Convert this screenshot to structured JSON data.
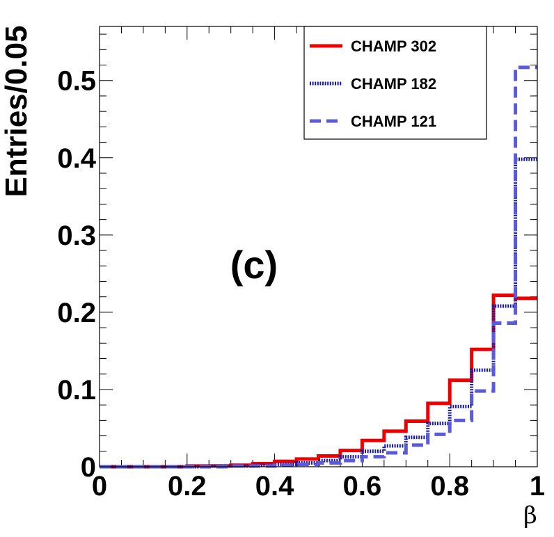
{
  "chart_data": {
    "type": "histogram",
    "panel_label": "(c)",
    "xlabel": "β",
    "ylabel": "Entries/0.05",
    "xlim": [
      0,
      1
    ],
    "ylim": [
      0,
      0.57
    ],
    "bin_width": 0.05,
    "x_ticks": [
      0,
      0.2,
      0.4,
      0.6,
      0.8,
      1
    ],
    "x_tick_labels": [
      "0",
      "0.2",
      "0.4",
      "0.6",
      "0.8",
      "1"
    ],
    "y_ticks": [
      0,
      0.1,
      0.2,
      0.3,
      0.4,
      0.5
    ],
    "y_tick_labels": [
      "0",
      "0.1",
      "0.2",
      "0.3",
      "0.4",
      "0.5"
    ],
    "legend_position": "top-right",
    "series": [
      {
        "name": "CHAMP 302",
        "color": "#ee0000",
        "style": "solid",
        "bin_edges": [
          0,
          0.05,
          0.1,
          0.15,
          0.2,
          0.25,
          0.3,
          0.35,
          0.4,
          0.45,
          0.5,
          0.55,
          0.6,
          0.65,
          0.7,
          0.75,
          0.8,
          0.85,
          0.9,
          0.95,
          1.0
        ],
        "values": [
          0.0,
          0.0,
          0.0,
          0.0,
          0.001,
          0.001,
          0.002,
          0.004,
          0.007,
          0.01,
          0.014,
          0.021,
          0.034,
          0.046,
          0.059,
          0.082,
          0.112,
          0.152,
          0.222,
          0.218
        ]
      },
      {
        "name": "CHAMP 182",
        "color": "#1a1aaa",
        "style": "dotted",
        "bin_edges": [
          0,
          0.05,
          0.1,
          0.15,
          0.2,
          0.25,
          0.3,
          0.35,
          0.4,
          0.45,
          0.5,
          0.55,
          0.6,
          0.65,
          0.7,
          0.75,
          0.8,
          0.85,
          0.9,
          0.95,
          1.0
        ],
        "values": [
          0.0,
          0.0,
          0.0,
          0.0,
          0.0,
          0.001,
          0.001,
          0.002,
          0.003,
          0.005,
          0.008,
          0.013,
          0.02,
          0.027,
          0.038,
          0.056,
          0.078,
          0.125,
          0.208,
          0.398
        ]
      },
      {
        "name": "CHAMP 121",
        "color": "#5b5bd9",
        "style": "dashed",
        "bin_edges": [
          0,
          0.05,
          0.1,
          0.15,
          0.2,
          0.25,
          0.3,
          0.35,
          0.4,
          0.45,
          0.5,
          0.55,
          0.6,
          0.65,
          0.7,
          0.75,
          0.8,
          0.85,
          0.9,
          0.95,
          1.0
        ],
        "values": [
          0.0,
          0.0,
          0.0,
          0.0,
          0.0,
          0.0,
          0.001,
          0.001,
          0.002,
          0.003,
          0.005,
          0.008,
          0.013,
          0.018,
          0.028,
          0.042,
          0.06,
          0.098,
          0.186,
          0.517
        ]
      }
    ]
  }
}
